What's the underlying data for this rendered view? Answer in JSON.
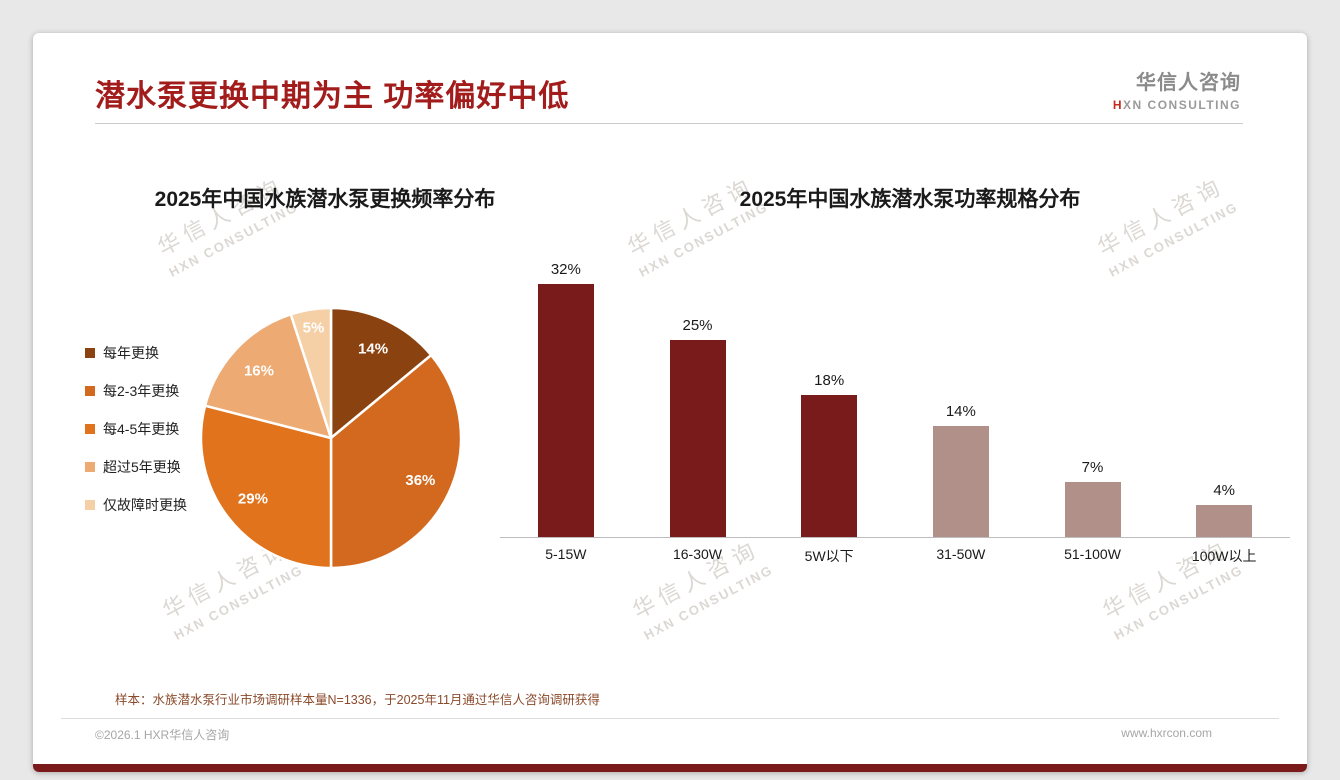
{
  "header": {
    "title": "潜水泵更换中期为主 功率偏好中低",
    "logo_cn": "华信人咨询",
    "logo_mark": "H",
    "logo_en": "XN CONSULTING"
  },
  "watermark": {
    "line1": "华信人咨询",
    "line2": "HXN CONSULTING"
  },
  "chart_data": [
    {
      "type": "pie",
      "title": "2025年中国水族潜水泵更换频率分布",
      "labels": [
        "每年更换",
        "每2-3年更换",
        "每4-5年更换",
        "超过5年更换",
        "仅故障时更换"
      ],
      "values": [
        14,
        36,
        29,
        16,
        5
      ],
      "colors": [
        "#8a4310",
        "#d2691e",
        "#e0731c",
        "#edaa72",
        "#f5cfa6"
      ],
      "value_suffix": "%",
      "legend_position": "left"
    },
    {
      "type": "bar",
      "title": "2025年中国水族潜水泵功率规格分布",
      "categories": [
        "5-15W",
        "16-30W",
        "5W以下",
        "31-50W",
        "51-100W",
        "100W以上"
      ],
      "values": [
        32,
        25,
        18,
        14,
        7,
        4
      ],
      "colors": [
        "#7a1b1b",
        "#7a1b1b",
        "#7a1b1b",
        "#b19089",
        "#b19089",
        "#b19089"
      ],
      "value_suffix": "%",
      "ylim": [
        0,
        35
      ],
      "grid": false,
      "legend_position": "none"
    }
  ],
  "footer": {
    "note": "样本：水族潜水泵行业市场调研样本量N=1336，于2025年11月通过华信人咨询调研获得",
    "copyright": "©2026.1 HXR华信人咨询",
    "website": "www.hxrcon.com"
  }
}
